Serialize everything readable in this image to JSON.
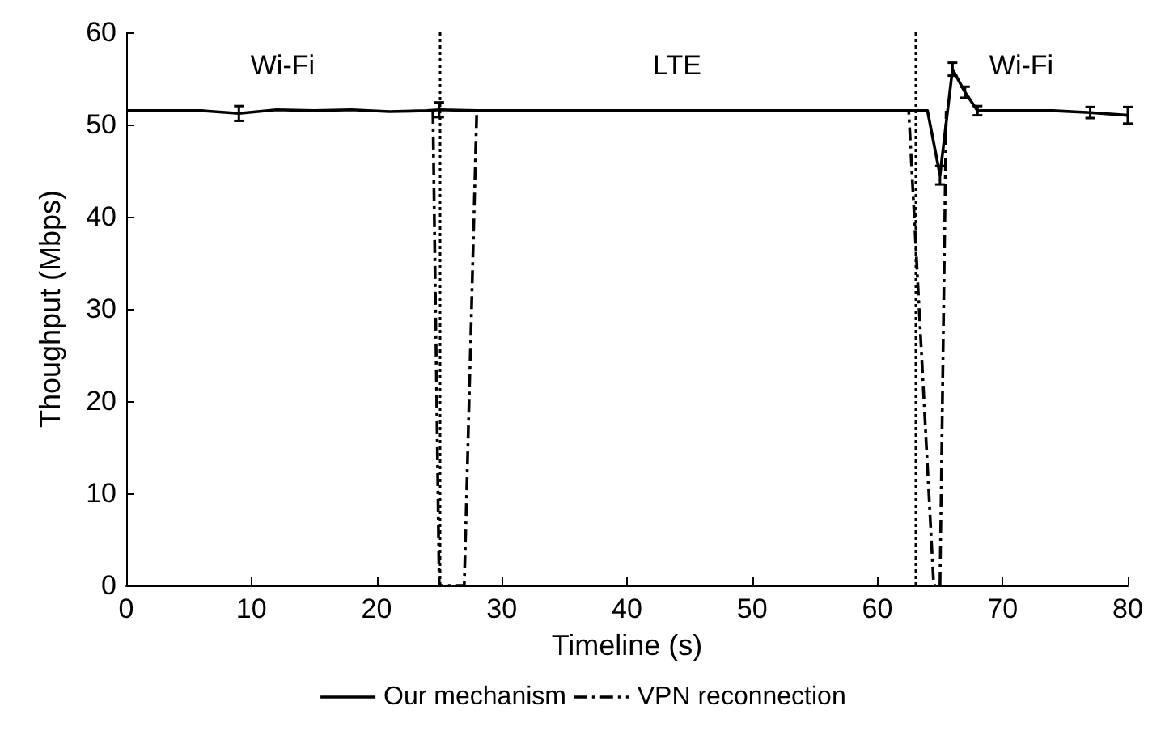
{
  "chart_data": {
    "type": "line",
    "xlabel": "Timeline (s)",
    "ylabel": "Thoughput (Mbps)",
    "xlim": [
      0,
      80
    ],
    "xticks": [
      0,
      10,
      20,
      30,
      40,
      50,
      60,
      70,
      80
    ],
    "ylim": [
      0,
      60
    ],
    "yticks": [
      0,
      10,
      20,
      30,
      40,
      50,
      60
    ],
    "grid": false,
    "legend": "bottom",
    "series": [
      {
        "name": "Our mechanism",
        "color": "#000000",
        "line_style": "solid",
        "x": [
          0,
          3,
          6,
          9,
          12,
          15,
          18,
          21,
          24,
          25,
          28,
          31,
          34,
          37,
          40,
          43,
          46,
          49,
          52,
          55,
          58,
          61,
          64,
          65,
          66,
          67,
          68,
          71,
          74,
          77,
          80
        ],
        "values": [
          51.5,
          51.5,
          51.5,
          51.2,
          51.6,
          51.5,
          51.6,
          51.4,
          51.5,
          51.6,
          51.5,
          51.5,
          51.5,
          51.5,
          51.5,
          51.5,
          51.5,
          51.5,
          51.5,
          51.5,
          51.5,
          51.5,
          51.5,
          44.5,
          56,
          53.5,
          51.5,
          51.5,
          51.5,
          51.3,
          51
        ],
        "errors": [
          null,
          null,
          null,
          0.8,
          null,
          null,
          null,
          null,
          null,
          0.8,
          null,
          null,
          null,
          null,
          null,
          null,
          null,
          null,
          null,
          null,
          null,
          null,
          null,
          1,
          0.7,
          0.6,
          0.5,
          null,
          null,
          0.6,
          0.9
        ]
      },
      {
        "name": "VPN reconnection",
        "color": "#000000",
        "line_style": "dashed",
        "x": [
          24.5,
          25,
          27,
          28,
          62.5,
          64.5,
          65,
          65.5
        ],
        "values": [
          51.5,
          0,
          0,
          51.5,
          51.5,
          0,
          0,
          51.5
        ]
      }
    ],
    "ref_lines": [
      {
        "axis": "x",
        "value": 25,
        "line_style": "dotted"
      },
      {
        "axis": "x",
        "value": 63,
        "line_style": "dotted"
      }
    ],
    "annotations": [
      "Wi-Fi",
      "LTE",
      "Wi-Fi"
    ]
  }
}
